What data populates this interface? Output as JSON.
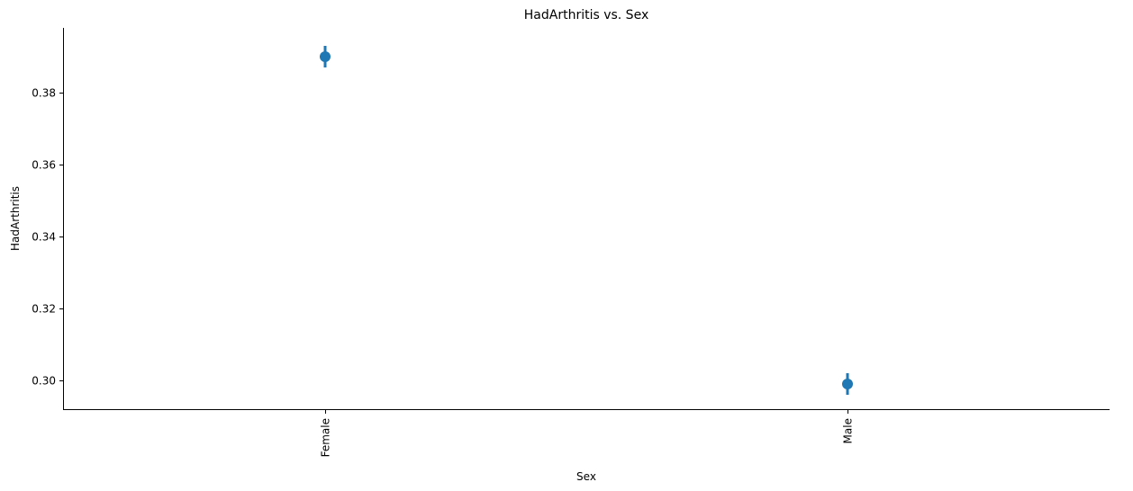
{
  "chart_data": {
    "type": "scatter",
    "title": "HadArthritis vs. Sex",
    "xlabel": "Sex",
    "ylabel": "HadArthritis",
    "categories": [
      "Female",
      "Male"
    ],
    "series": [
      {
        "values": [
          0.39,
          0.299
        ],
        "ci_low": [
          0.387,
          0.296
        ],
        "ci_high": [
          0.393,
          0.302
        ]
      }
    ],
    "ylim": [
      0.292,
      0.398
    ],
    "yticks": [
      0.3,
      0.32,
      0.34,
      0.36,
      0.38
    ],
    "ytick_labels": [
      "0.30",
      "0.32",
      "0.34",
      "0.36",
      "0.38"
    ],
    "grid": false,
    "color": "#1f77b4"
  }
}
